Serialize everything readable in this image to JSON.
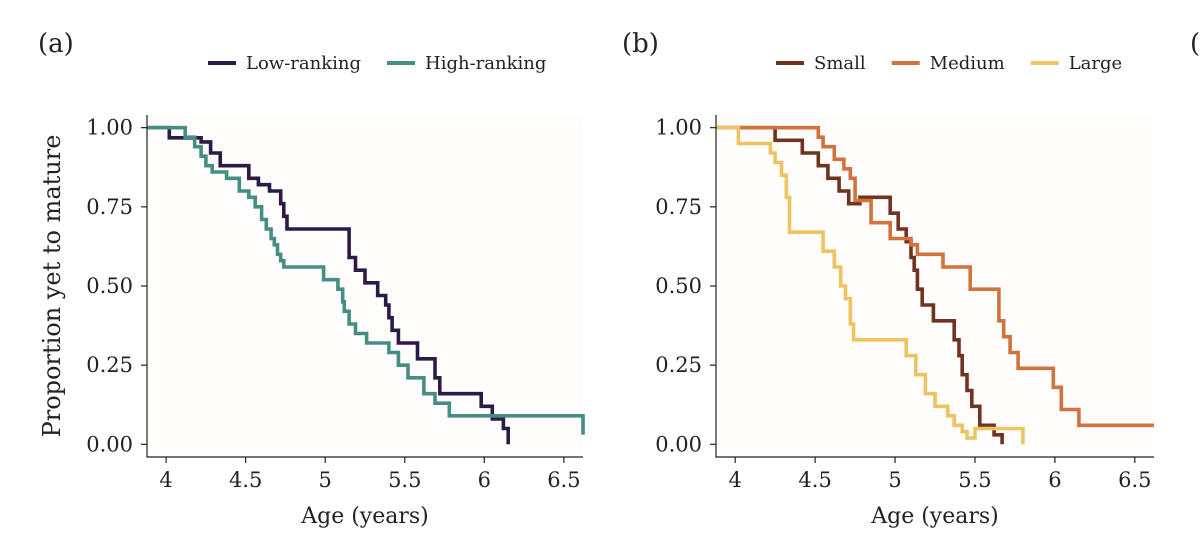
{
  "chart_data": [
    {
      "type": "line",
      "panel_label": "(a)",
      "title": "",
      "xlabel": "Age (years)",
      "ylabel": "Proportion yet to mature",
      "xlim": [
        3.88,
        6.62
      ],
      "ylim": [
        -0.04,
        1.04
      ],
      "xticks": [
        4,
        4.5,
        5,
        5.5,
        6,
        6.5
      ],
      "xtick_labels": [
        "4",
        "4.5",
        "5",
        "5.5",
        "6",
        "6.5"
      ],
      "yticks": [
        0,
        0.25,
        0.5,
        0.75,
        1
      ],
      "ytick_labels": [
        "0.00",
        "0.25",
        "0.50",
        "0.75",
        "1.00"
      ],
      "legend": {
        "placement": "top",
        "entries": [
          "Low-ranking",
          "High-ranking"
        ]
      },
      "series": [
        {
          "name": "Low-ranking",
          "color": "#2e1a47",
          "step": "post",
          "x": [
            3.88,
            4.02,
            4.22,
            4.28,
            4.34,
            4.52,
            4.58,
            4.65,
            4.72,
            4.74,
            4.76,
            5.15,
            5.19,
            5.25,
            5.33,
            5.38,
            5.4,
            5.42,
            5.46,
            5.58,
            5.69,
            5.72,
            5.98,
            6.05,
            6.12,
            6.15,
            6.15
          ],
          "y": [
            1.0,
            0.968,
            0.955,
            0.92,
            0.88,
            0.84,
            0.82,
            0.8,
            0.76,
            0.72,
            0.68,
            0.59,
            0.55,
            0.51,
            0.47,
            0.44,
            0.4,
            0.36,
            0.32,
            0.27,
            0.21,
            0.16,
            0.12,
            0.08,
            0.05,
            0.04,
            0.0
          ]
        },
        {
          "name": "High-ranking",
          "color": "#468e84",
          "step": "post",
          "x": [
            3.88,
            4.12,
            4.18,
            4.22,
            4.25,
            4.29,
            4.38,
            4.46,
            4.52,
            4.56,
            4.6,
            4.63,
            4.66,
            4.68,
            4.7,
            4.72,
            4.74,
            4.99,
            5.08,
            5.11,
            5.12,
            5.15,
            5.19,
            5.26,
            5.4,
            5.46,
            5.52,
            5.62,
            5.69,
            5.78,
            6.62
          ],
          "y": [
            1.0,
            0.97,
            0.94,
            0.91,
            0.88,
            0.86,
            0.84,
            0.8,
            0.78,
            0.75,
            0.71,
            0.68,
            0.65,
            0.63,
            0.6,
            0.58,
            0.56,
            0.52,
            0.49,
            0.45,
            0.42,
            0.38,
            0.35,
            0.32,
            0.29,
            0.25,
            0.21,
            0.16,
            0.13,
            0.09,
            0.03
          ]
        }
      ]
    },
    {
      "type": "line",
      "panel_label": "(b)",
      "title": "",
      "xlabel": "Age (years)",
      "ylabel": "",
      "xlim": [
        3.88,
        6.62
      ],
      "ylim": [
        -0.04,
        1.04
      ],
      "xticks": [
        4,
        4.5,
        5,
        5.5,
        6,
        6.5
      ],
      "xtick_labels": [
        "4",
        "4.5",
        "5",
        "5.5",
        "6",
        "6.5"
      ],
      "yticks": [
        0,
        0.25,
        0.5,
        0.75,
        1
      ],
      "ytick_labels": [
        "0.00",
        "0.25",
        "0.50",
        "0.75",
        "1.00"
      ],
      "legend": {
        "placement": "top",
        "entries": [
          "Small",
          "Medium",
          "Large"
        ]
      },
      "series": [
        {
          "name": "Small",
          "color": "#6e3420",
          "step": "post",
          "x": [
            3.88,
            4.25,
            4.42,
            4.52,
            4.58,
            4.65,
            4.71,
            4.78,
            4.97,
            5.02,
            5.07,
            5.1,
            5.12,
            5.14,
            5.17,
            5.24,
            5.37,
            5.4,
            5.42,
            5.45,
            5.48,
            5.53,
            5.62,
            5.67,
            5.67
          ],
          "y": [
            1.0,
            0.96,
            0.92,
            0.88,
            0.84,
            0.8,
            0.76,
            0.78,
            0.73,
            0.68,
            0.64,
            0.59,
            0.55,
            0.49,
            0.44,
            0.39,
            0.33,
            0.28,
            0.22,
            0.17,
            0.12,
            0.06,
            0.03,
            0.01,
            0.0
          ]
        },
        {
          "name": "Medium",
          "color": "#d0733d",
          "step": "post",
          "x": [
            3.88,
            4.52,
            4.55,
            4.62,
            4.68,
            4.72,
            4.75,
            4.85,
            4.97,
            5.05,
            5.1,
            5.14,
            5.22,
            5.3,
            5.47,
            5.65,
            5.68,
            5.72,
            5.77,
            5.99,
            6.04,
            6.15,
            6.62
          ],
          "y": [
            1.0,
            0.97,
            0.94,
            0.9,
            0.87,
            0.84,
            0.77,
            0.7,
            0.65,
            0.65,
            0.63,
            0.6,
            0.6,
            0.56,
            0.49,
            0.39,
            0.34,
            0.29,
            0.24,
            0.18,
            0.11,
            0.06,
            0.06
          ]
        },
        {
          "name": "Large",
          "color": "#ecc462",
          "step": "post",
          "x": [
            3.88,
            4.02,
            4.1,
            4.22,
            4.25,
            4.29,
            4.32,
            4.34,
            4.55,
            4.62,
            4.66,
            4.69,
            4.72,
            4.74,
            5.07,
            5.13,
            5.19,
            5.25,
            5.33,
            5.37,
            5.42,
            5.45,
            5.5,
            5.8,
            5.8
          ],
          "y": [
            1.0,
            0.95,
            0.95,
            0.92,
            0.89,
            0.85,
            0.78,
            0.67,
            0.61,
            0.56,
            0.5,
            0.46,
            0.38,
            0.33,
            0.28,
            0.22,
            0.16,
            0.12,
            0.09,
            0.06,
            0.04,
            0.02,
            0.05,
            0.05,
            0.0
          ]
        }
      ]
    }
  ],
  "next_panel_label": "("
}
